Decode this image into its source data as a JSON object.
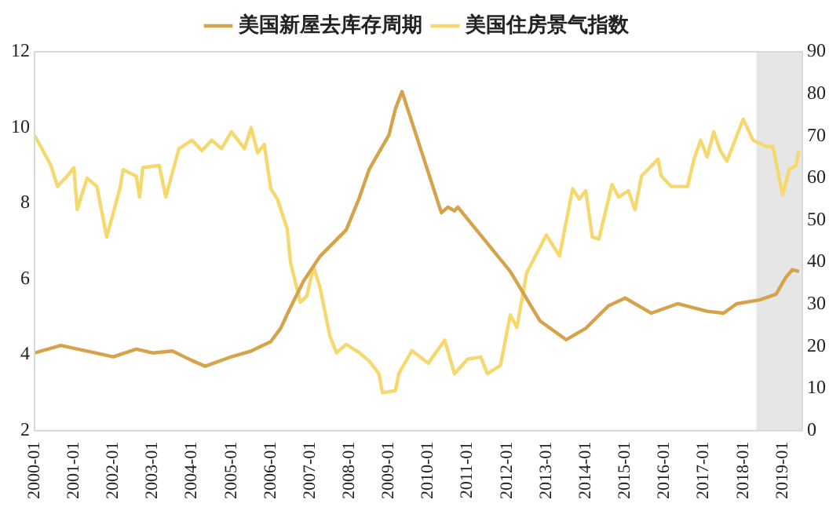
{
  "chart_data": {
    "type": "line",
    "legend": "top",
    "grid": false,
    "marker": "none",
    "line_style": "solid",
    "xlim": [
      "2000-01",
      "2019-07"
    ],
    "xticks": [
      "2000-01",
      "2001-01",
      "2002-01",
      "2003-01",
      "2004-01",
      "2005-01",
      "2006-01",
      "2007-01",
      "2008-01",
      "2009-01",
      "2010-01",
      "2011-01",
      "2012-01",
      "2013-01",
      "2014-01",
      "2015-01",
      "2016-01",
      "2017-01",
      "2018-01",
      "2019-01"
    ],
    "ylim": [
      2,
      12
    ],
    "yticks": [
      2,
      4,
      6,
      8,
      10,
      12
    ],
    "y2lim": [
      0,
      90
    ],
    "y2ticks": [
      0,
      10,
      20,
      30,
      40,
      50,
      60,
      70,
      80,
      90
    ],
    "bands": [
      {
        "axis": "x",
        "from": "2018-05",
        "to": "2019-07",
        "color": "#e6e6e6"
      }
    ],
    "series": [
      {
        "name": "美国新屋去库存周期",
        "color": "#d6a24a",
        "x": [
          "2000-01",
          "2000-09",
          "2002-01",
          "2002-08",
          "2003-01",
          "2003-07",
          "2004-01",
          "2004-05",
          "2005-01",
          "2005-07",
          "2006-01",
          "2006-04",
          "2006-07",
          "2006-11",
          "2007-04",
          "2007-12",
          "2008-04",
          "2008-07",
          "2009-01",
          "2009-03",
          "2009-05",
          "2010-05",
          "2010-07",
          "2010-09",
          "2010-10",
          "2012-02",
          "2012-11",
          "2013-07",
          "2014-01",
          "2014-08",
          "2015-01",
          "2015-09",
          "2016-05",
          "2017-02",
          "2017-07",
          "2017-11",
          "2018-06",
          "2018-11",
          "2019-02",
          "2019-04",
          "2019-06"
        ],
        "values": [
          4.05,
          4.25,
          3.95,
          4.15,
          4.05,
          4.1,
          3.85,
          3.7,
          3.95,
          4.1,
          4.35,
          4.7,
          5.25,
          5.95,
          6.6,
          7.3,
          8.15,
          8.9,
          9.8,
          10.5,
          10.95,
          7.75,
          7.9,
          7.8,
          7.9,
          6.2,
          4.9,
          4.4,
          4.7,
          5.3,
          5.5,
          5.1,
          5.35,
          5.15,
          5.1,
          5.35,
          5.45,
          5.6,
          6.05,
          6.25,
          6.2
        ]
      },
      {
        "name": "美国住房景气指数",
        "color": "#f5d96e",
        "axis": "y2",
        "x": [
          "2000-01",
          "2000-06",
          "2000-08",
          "2000-11",
          "2001-01",
          "2001-02",
          "2001-05",
          "2001-08",
          "2001-11",
          "2002-03",
          "2002-04",
          "2002-08",
          "2002-09",
          "2002-10",
          "2003-03",
          "2003-05",
          "2003-09",
          "2004-01",
          "2004-04",
          "2004-07",
          "2004-10",
          "2005-01",
          "2005-05",
          "2005-07",
          "2005-09",
          "2005-11",
          "2006-01",
          "2006-03",
          "2006-06",
          "2006-07",
          "2006-10",
          "2006-12",
          "2007-02",
          "2007-04",
          "2007-07",
          "2007-09",
          "2007-12",
          "2008-04",
          "2008-07",
          "2008-10",
          "2008-11",
          "2009-03",
          "2009-04",
          "2009-08",
          "2010-01",
          "2010-06",
          "2010-09",
          "2011-01",
          "2011-05",
          "2011-07",
          "2011-11",
          "2012-02",
          "2012-04",
          "2012-07",
          "2013-01",
          "2013-05",
          "2013-09",
          "2013-11",
          "2014-01",
          "2014-03",
          "2014-05",
          "2014-09",
          "2014-11",
          "2015-02",
          "2015-04",
          "2015-06",
          "2015-11",
          "2015-12",
          "2016-03",
          "2016-08",
          "2016-10",
          "2016-12",
          "2017-02",
          "2017-04",
          "2017-06",
          "2017-08",
          "2017-10",
          "2018-01",
          "2018-04",
          "2018-08",
          "2018-10",
          "2019-01",
          "2019-03",
          "2019-05",
          "2019-06"
        ],
        "values": [
          70.2,
          63,
          58,
          60.5,
          62.5,
          52.5,
          60,
          58,
          46,
          57.5,
          62,
          60.5,
          55.5,
          62.5,
          63,
          55.5,
          67,
          69,
          66.5,
          69,
          67,
          71,
          67,
          72,
          66,
          68,
          57.5,
          55,
          48,
          40,
          30.5,
          32,
          39,
          34,
          22.5,
          18.5,
          20.5,
          18.5,
          16.5,
          13.5,
          9,
          9.5,
          13.5,
          19,
          16,
          21.5,
          13.5,
          17,
          17.5,
          13.5,
          15.5,
          27.5,
          24.5,
          37.5,
          46.5,
          41.5,
          57.5,
          55,
          57,
          46,
          45.5,
          58.5,
          55.5,
          57,
          52.5,
          60.5,
          64.5,
          60.5,
          58,
          58,
          64.5,
          69,
          65,
          71,
          66.5,
          64,
          68,
          74,
          69,
          67.5,
          67.5,
          56,
          62,
          63,
          66.5
        ]
      }
    ]
  }
}
